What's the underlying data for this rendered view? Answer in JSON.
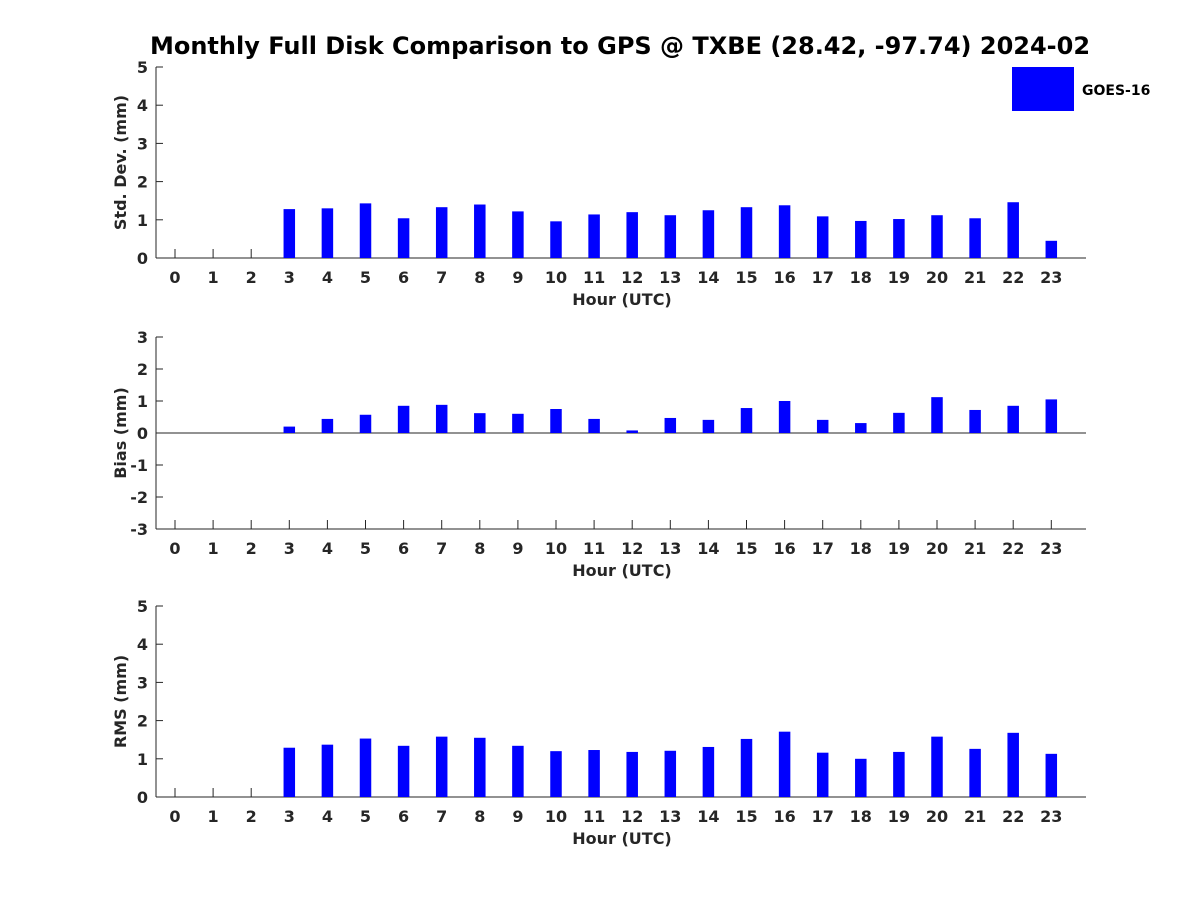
{
  "title": "Monthly Full Disk Comparison to GPS @ TXBE (28.42, -97.74) 2024-02",
  "legend": {
    "label": "GOES-16",
    "color": "#0000ff",
    "placement": "top-right"
  },
  "chart_data": [
    {
      "type": "bar",
      "xlabel": "Hour (UTC)",
      "ylabel": "Std. Dev. (mm)",
      "ylim": [
        0,
        5
      ],
      "yticks": [
        "0",
        "1",
        "2",
        "3",
        "4",
        "5"
      ],
      "categories": [
        "0",
        "1",
        "2",
        "3",
        "4",
        "5",
        "6",
        "7",
        "8",
        "9",
        "10",
        "11",
        "12",
        "13",
        "14",
        "15",
        "16",
        "17",
        "18",
        "19",
        "20",
        "21",
        "22",
        "23"
      ],
      "series": [
        {
          "name": "GOES-16",
          "color": "#0000ff",
          "values": [
            null,
            null,
            null,
            1.28,
            1.3,
            1.43,
            1.04,
            1.33,
            1.4,
            1.22,
            0.96,
            1.14,
            1.2,
            1.12,
            1.25,
            1.33,
            1.38,
            1.09,
            0.97,
            1.02,
            1.12,
            1.04,
            1.46,
            0.45
          ]
        }
      ]
    },
    {
      "type": "bar",
      "xlabel": "Hour (UTC)",
      "ylabel": "Bias (mm)",
      "ylim": [
        -3,
        3
      ],
      "yticks": [
        "-3",
        "-2",
        "-1",
        "0",
        "1",
        "2",
        "3"
      ],
      "categories": [
        "0",
        "1",
        "2",
        "3",
        "4",
        "5",
        "6",
        "7",
        "8",
        "9",
        "10",
        "11",
        "12",
        "13",
        "14",
        "15",
        "16",
        "17",
        "18",
        "19",
        "20",
        "21",
        "22",
        "23"
      ],
      "series": [
        {
          "color": "#0000ff",
          "values": [
            null,
            null,
            null,
            0.2,
            0.44,
            0.57,
            0.85,
            0.88,
            0.62,
            0.6,
            0.75,
            0.44,
            0.08,
            0.47,
            0.41,
            0.78,
            1.0,
            0.41,
            0.31,
            0.63,
            1.12,
            0.72,
            0.85,
            1.05
          ]
        }
      ]
    },
    {
      "type": "bar",
      "xlabel": "Hour (UTC)",
      "ylabel": "RMS (mm)",
      "ylim": [
        0,
        5
      ],
      "yticks": [
        "0",
        "1",
        "2",
        "3",
        "4",
        "5"
      ],
      "categories": [
        "0",
        "1",
        "2",
        "3",
        "4",
        "5",
        "6",
        "7",
        "8",
        "9",
        "10",
        "11",
        "12",
        "13",
        "14",
        "15",
        "16",
        "17",
        "18",
        "19",
        "20",
        "21",
        "22",
        "23"
      ],
      "series": [
        {
          "color": "#0000ff",
          "values": [
            null,
            null,
            null,
            1.29,
            1.37,
            1.53,
            1.34,
            1.58,
            1.55,
            1.34,
            1.2,
            1.23,
            1.18,
            1.21,
            1.31,
            1.52,
            1.71,
            1.16,
            1.0,
            1.18,
            1.58,
            1.26,
            1.68,
            1.13
          ]
        }
      ]
    }
  ]
}
